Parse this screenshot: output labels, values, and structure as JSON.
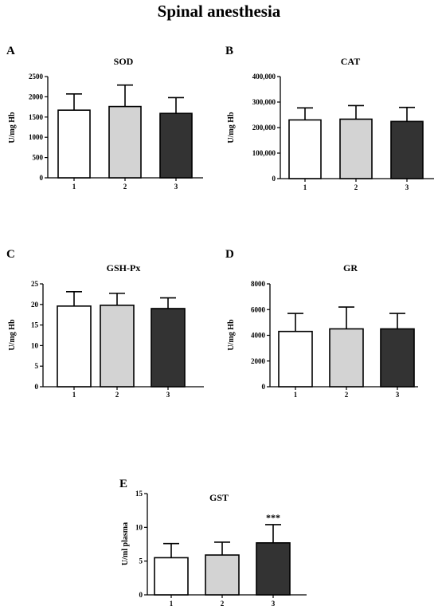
{
  "page_title": "Spinal anesthesia",
  "colors": {
    "group1": "#ffffff",
    "group2": "#d3d3d3",
    "group3": "#333333",
    "stroke": "#000000"
  },
  "chart_data": [
    {
      "type": "bar",
      "letter": "A",
      "title": "SOD",
      "ylabel": "U/mg Hb",
      "categories": [
        "1",
        "2",
        "3"
      ],
      "values": [
        1670,
        1760,
        1590
      ],
      "errors": [
        400,
        530,
        390
      ],
      "ylim": [
        0,
        2500
      ],
      "yticks": [
        0,
        500,
        1000,
        1500,
        2000,
        2500
      ],
      "ytick_labels": [
        "0",
        "500",
        "1000",
        "1500",
        "2000",
        "2500"
      ],
      "annotations": [
        "",
        "",
        ""
      ]
    },
    {
      "type": "bar",
      "letter": "B",
      "title": "CAT",
      "ylabel": "U/mg Hb",
      "categories": [
        "1",
        "2",
        "3"
      ],
      "values": [
        230000,
        233000,
        224000
      ],
      "errors": [
        47000,
        53000,
        55000
      ],
      "ylim": [
        0,
        400000
      ],
      "yticks": [
        0,
        100000,
        200000,
        300000,
        400000
      ],
      "ytick_labels": [
        "0",
        "100,000",
        "200,000",
        "300,000",
        "400,000"
      ],
      "annotations": [
        "",
        "",
        ""
      ]
    },
    {
      "type": "bar",
      "letter": "C",
      "title": "GSH-Px",
      "ylabel": "U/mg Hb",
      "categories": [
        "1",
        "2",
        "3"
      ],
      "values": [
        19.6,
        19.8,
        19.0
      ],
      "errors": [
        3.5,
        2.9,
        2.6
      ],
      "ylim": [
        0,
        25
      ],
      "yticks": [
        0,
        5,
        10,
        15,
        20,
        25
      ],
      "ytick_labels": [
        "0",
        "5",
        "10",
        "15",
        "20",
        "25"
      ],
      "annotations": [
        "",
        "",
        ""
      ]
    },
    {
      "type": "bar",
      "letter": "D",
      "title": "GR",
      "ylabel": "U/mg Hb",
      "categories": [
        "1",
        "2",
        "3"
      ],
      "values": [
        4300,
        4500,
        4500
      ],
      "errors": [
        1400,
        1700,
        1200
      ],
      "ylim": [
        0,
        8000
      ],
      "yticks": [
        0,
        2000,
        4000,
        6000,
        8000
      ],
      "ytick_labels": [
        "0",
        "2000",
        "4000",
        "6000",
        "8000"
      ],
      "annotations": [
        "",
        "",
        ""
      ]
    },
    {
      "type": "bar",
      "letter": "E",
      "title": "GST",
      "ylabel": "U/ml plasma",
      "categories": [
        "1",
        "2",
        "3"
      ],
      "values": [
        5.5,
        5.9,
        7.7
      ],
      "errors": [
        2.1,
        1.9,
        2.7
      ],
      "ylim": [
        0,
        15
      ],
      "yticks": [
        0,
        5,
        10,
        15
      ],
      "ytick_labels": [
        "0",
        "5",
        "10",
        "15"
      ],
      "annotations": [
        "",
        "",
        "***"
      ]
    }
  ]
}
